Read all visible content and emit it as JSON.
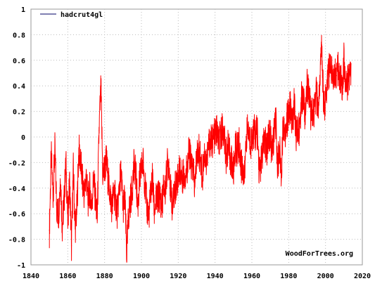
{
  "chart_data": {
    "type": "line",
    "title": "",
    "xlabel": "",
    "ylabel": "",
    "xlim": [
      1840,
      2020
    ],
    "ylim": [
      -1,
      1
    ],
    "grid": true,
    "legend_position": "top-left",
    "x_ticks": [
      "1840",
      "1860",
      "1880",
      "1900",
      "1920",
      "1940",
      "1960",
      "1980",
      "2000",
      "2020"
    ],
    "y_ticks": [
      "1",
      "0.8",
      "0.6",
      "0.4",
      "0.2",
      "0",
      "-0.2",
      "-0.4",
      "-0.6",
      "-0.8",
      "-1"
    ],
    "series": [
      {
        "name": "hadcrut4gl",
        "color": "#ff0000",
        "legend_line_color": "#000066",
        "x": [
          1850.0,
          1851.0,
          1852.0,
          1853.0,
          1854.0,
          1855.0,
          1856.0,
          1857.0,
          1858.0,
          1859.0,
          1860.0,
          1861.0,
          1862.0,
          1863.0,
          1864.0,
          1865.0,
          1866.0,
          1867.0,
          1868.0,
          1869.0,
          1870.0,
          1871.0,
          1872.0,
          1873.0,
          1874.0,
          1875.0,
          1876.0,
          1877.0,
          1878.0,
          1879.0,
          1880.0,
          1881.0,
          1882.0,
          1883.0,
          1884.0,
          1885.0,
          1886.0,
          1887.0,
          1888.0,
          1889.0,
          1890.0,
          1891.0,
          1892.0,
          1893.0,
          1894.0,
          1895.0,
          1896.0,
          1897.0,
          1898.0,
          1899.0,
          1900.0,
          1901.0,
          1902.0,
          1903.0,
          1904.0,
          1905.0,
          1906.0,
          1907.0,
          1908.0,
          1909.0,
          1910.0,
          1911.0,
          1912.0,
          1913.0,
          1914.0,
          1915.0,
          1916.0,
          1917.0,
          1918.0,
          1919.0,
          1920.0,
          1921.0,
          1922.0,
          1923.0,
          1924.0,
          1925.0,
          1926.0,
          1927.0,
          1928.0,
          1929.0,
          1930.0,
          1931.0,
          1932.0,
          1933.0,
          1934.0,
          1935.0,
          1936.0,
          1937.0,
          1938.0,
          1939.0,
          1940.0,
          1941.0,
          1942.0,
          1943.0,
          1944.0,
          1945.0,
          1946.0,
          1947.0,
          1948.0,
          1949.0,
          1950.0,
          1951.0,
          1952.0,
          1953.0,
          1954.0,
          1955.0,
          1956.0,
          1957.0,
          1958.0,
          1959.0,
          1960.0,
          1961.0,
          1962.0,
          1963.0,
          1964.0,
          1965.0,
          1966.0,
          1967.0,
          1968.0,
          1969.0,
          1970.0,
          1971.0,
          1972.0,
          1973.0,
          1974.0,
          1975.0,
          1976.0,
          1977.0,
          1978.0,
          1979.0,
          1980.0,
          1981.0,
          1982.0,
          1983.0,
          1984.0,
          1985.0,
          1986.0,
          1987.0,
          1988.0,
          1989.0,
          1990.0,
          1991.0,
          1992.0,
          1993.0,
          1994.0,
          1995.0,
          1996.0,
          1997.0,
          1998.0,
          1999.0,
          2000.0,
          2001.0,
          2002.0,
          2003.0,
          2004.0,
          2005.0,
          2006.0,
          2007.0,
          2008.0,
          2009.0,
          2010.0,
          2011.0,
          2012.0,
          2013.0
        ],
        "values": [
          -0.73,
          -0.15,
          -0.45,
          -0.1,
          -0.55,
          -0.62,
          -0.3,
          -0.7,
          -0.5,
          -0.2,
          -0.65,
          -0.35,
          -0.85,
          -0.25,
          -0.72,
          -0.55,
          -0.1,
          -0.2,
          -0.35,
          -0.45,
          -0.3,
          -0.5,
          -0.4,
          -0.55,
          -0.32,
          -0.48,
          -0.65,
          0.05,
          0.38,
          -0.3,
          -0.25,
          -0.18,
          -0.35,
          -0.45,
          -0.55,
          -0.42,
          -0.5,
          -0.6,
          -0.38,
          -0.28,
          -0.55,
          -0.48,
          -0.92,
          -0.62,
          -0.5,
          -0.4,
          -0.22,
          -0.3,
          -0.55,
          -0.35,
          -0.25,
          -0.2,
          -0.38,
          -0.55,
          -0.62,
          -0.45,
          -0.32,
          -0.58,
          -0.5,
          -0.48,
          -0.45,
          -0.55,
          -0.4,
          -0.42,
          -0.22,
          -0.2,
          -0.45,
          -0.55,
          -0.42,
          -0.35,
          -0.3,
          -0.25,
          -0.32,
          -0.28,
          -0.3,
          -0.22,
          -0.1,
          -0.22,
          -0.25,
          -0.4,
          -0.15,
          -0.1,
          -0.16,
          -0.33,
          -0.12,
          -0.18,
          -0.14,
          -0.02,
          -0.04,
          -0.02,
          0.02,
          0.05,
          -0.05,
          0.0,
          0.08,
          -0.02,
          -0.15,
          -0.08,
          -0.15,
          -0.2,
          -0.28,
          -0.08,
          -0.1,
          -0.05,
          -0.22,
          -0.24,
          -0.32,
          0.02,
          0.05,
          -0.04,
          -0.02,
          0.05,
          0.02,
          0.04,
          -0.28,
          -0.2,
          -0.1,
          -0.02,
          -0.12,
          0.05,
          0.0,
          -0.12,
          0.02,
          0.12,
          -0.22,
          -0.08,
          -0.28,
          0.12,
          0.05,
          0.12,
          0.18,
          0.25,
          0.08,
          0.28,
          0.0,
          0.05,
          0.08,
          0.3,
          0.35,
          0.15,
          0.4,
          0.38,
          0.15,
          0.18,
          0.2,
          0.35,
          0.2,
          0.48,
          0.72,
          0.25,
          0.28,
          0.48,
          0.52,
          0.55,
          0.48,
          0.52,
          0.48,
          0.55,
          0.45,
          0.4,
          0.6,
          0.4,
          0.42,
          0.5
        ],
        "amplitude_note": ""
      }
    ],
    "credit": "WoodForTrees.org"
  }
}
